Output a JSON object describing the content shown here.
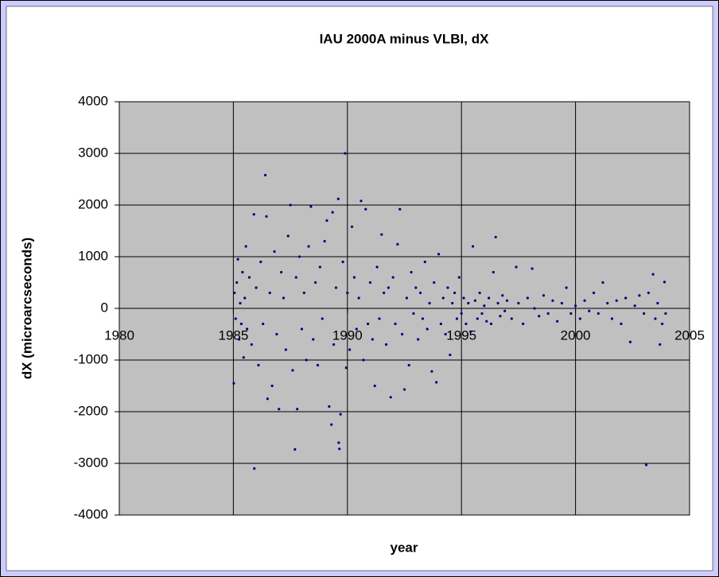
{
  "chart_data": {
    "type": "scatter",
    "title": "IAU 2000A minus VLBI, dX",
    "xlabel": "year",
    "ylabel": "dX (microarcseconds)",
    "color": "#000080",
    "grid": true,
    "xlim": [
      1980,
      2005
    ],
    "xticks": [
      1980,
      1985,
      1990,
      1995,
      2000,
      2005
    ],
    "ylim": [
      -4000,
      4000
    ],
    "yticks": [
      -4000,
      -3000,
      -2000,
      -1000,
      0,
      1000,
      2000,
      3000,
      4000
    ],
    "x": [
      1985.02,
      1985.05,
      1985.1,
      1985.15,
      1985.2,
      1985.25,
      1985.3,
      1985.35,
      1985.4,
      1985.45,
      1985.5,
      1985.55,
      1985.6,
      1985.7,
      1985.8,
      1985.9,
      1985.92,
      1986.0,
      1986.1,
      1986.2,
      1986.3,
      1986.4,
      1986.45,
      1986.5,
      1986.6,
      1986.7,
      1986.8,
      1986.9,
      1987.0,
      1987.1,
      1987.2,
      1987.3,
      1987.4,
      1987.5,
      1987.6,
      1987.7,
      1987.75,
      1987.8,
      1987.9,
      1988.0,
      1988.1,
      1988.2,
      1988.3,
      1988.4,
      1988.5,
      1988.6,
      1988.7,
      1988.8,
      1988.9,
      1989.0,
      1989.1,
      1989.2,
      1989.3,
      1989.35,
      1989.4,
      1989.5,
      1989.6,
      1989.62,
      1989.65,
      1989.7,
      1989.8,
      1989.9,
      1989.95,
      1990.0,
      1990.1,
      1990.2,
      1990.3,
      1990.4,
      1990.5,
      1990.6,
      1990.7,
      1990.8,
      1990.9,
      1991.0,
      1991.1,
      1991.2,
      1991.3,
      1991.4,
      1991.5,
      1991.6,
      1991.7,
      1991.8,
      1991.9,
      1992.0,
      1992.1,
      1992.2,
      1992.3,
      1992.4,
      1992.5,
      1992.6,
      1992.7,
      1992.8,
      1992.9,
      1993.0,
      1993.1,
      1993.2,
      1993.3,
      1993.4,
      1993.5,
      1993.6,
      1993.7,
      1993.8,
      1993.9,
      1994.0,
      1994.1,
      1994.2,
      1994.3,
      1994.4,
      1994.5,
      1994.6,
      1994.7,
      1994.8,
      1994.9,
      1995.0,
      1995.1,
      1995.2,
      1995.3,
      1995.4,
      1995.5,
      1995.6,
      1995.7,
      1995.8,
      1995.9,
      1996.0,
      1996.1,
      1996.2,
      1996.3,
      1996.4,
      1996.5,
      1996.6,
      1996.7,
      1996.8,
      1996.9,
      1997.0,
      1997.2,
      1997.4,
      1997.5,
      1997.7,
      1997.9,
      1998.1,
      1998.2,
      1998.4,
      1998.6,
      1998.8,
      1999.0,
      1999.2,
      1999.4,
      1999.6,
      1999.8,
      2000.0,
      2000.2,
      2000.4,
      2000.6,
      2000.8,
      2001.0,
      2001.2,
      2001.4,
      2001.6,
      2001.8,
      2002.0,
      2002.2,
      2002.4,
      2002.6,
      2002.8,
      2003.0,
      2003.1,
      2003.2,
      2003.4,
      2003.5,
      2003.6,
      2003.7,
      2003.8,
      2003.9,
      2003.95
    ],
    "values": [
      -1450,
      300,
      -200,
      500,
      950,
      -600,
      100,
      -300,
      700,
      -950,
      200,
      1200,
      -400,
      600,
      -700,
      1820,
      -3100,
      400,
      -1100,
      900,
      -300,
      2580,
      1780,
      -1750,
      300,
      -1500,
      1100,
      -500,
      -1950,
      700,
      200,
      -800,
      1400,
      2000,
      -1200,
      -2730,
      600,
      -1950,
      1000,
      -400,
      300,
      -1000,
      1200,
      1970,
      -600,
      500,
      -1100,
      800,
      -200,
      1300,
      1700,
      -1900,
      -2250,
      1860,
      -700,
      400,
      2120,
      -2600,
      -2720,
      -2050,
      900,
      3000,
      -1150,
      300,
      -800,
      1580,
      600,
      -400,
      200,
      2080,
      -1000,
      1920,
      -300,
      500,
      -600,
      -1500,
      800,
      -200,
      1430,
      300,
      -700,
      400,
      -1720,
      600,
      -300,
      1240,
      1920,
      -500,
      -1570,
      200,
      -1100,
      700,
      -100,
      400,
      -600,
      300,
      -200,
      900,
      -400,
      100,
      -1220,
      500,
      -1430,
      1050,
      -300,
      200,
      -500,
      400,
      -900,
      100,
      300,
      -200,
      600,
      -100,
      200,
      -300,
      100,
      -450,
      1200,
      150,
      -200,
      300,
      -100,
      50,
      -250,
      200,
      -300,
      700,
      1380,
      100,
      -150,
      250,
      -50,
      150,
      -200,
      800,
      100,
      -300,
      200,
      770,
      0,
      -150,
      250,
      -100,
      150,
      -250,
      100,
      400,
      -100,
      50,
      -200,
      150,
      -50,
      300,
      -100,
      500,
      100,
      -200,
      150,
      -300,
      200,
      -650,
      50,
      250,
      -100,
      -3030,
      300,
      660,
      -200,
      100,
      -700,
      -300,
      510,
      -100
    ]
  }
}
